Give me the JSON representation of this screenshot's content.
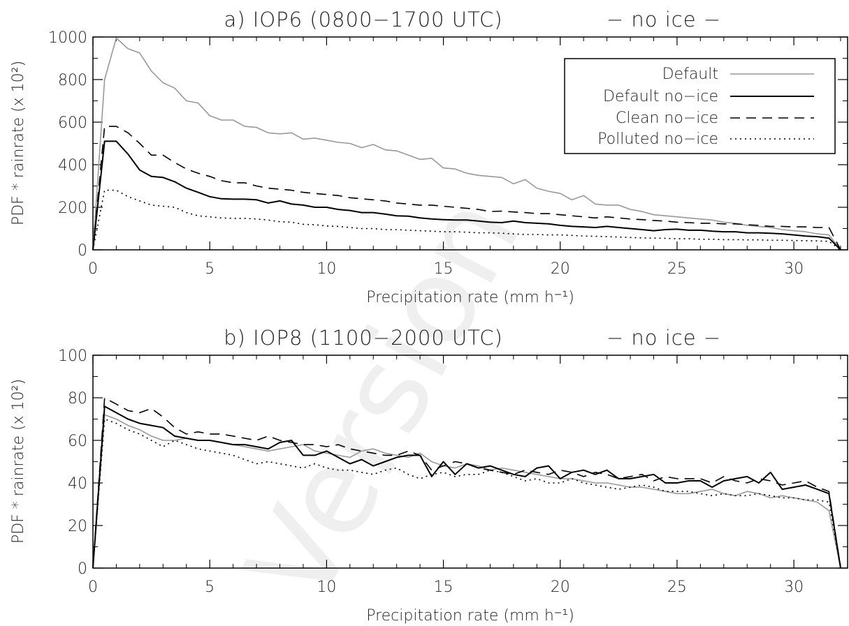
{
  "watermark": "Version",
  "legend": {
    "entries": [
      {
        "label": "Default",
        "color": "#999999",
        "dash": "solid",
        "width": 1.6
      },
      {
        "label": "Default no−ice",
        "color": "#000000",
        "dash": "solid",
        "width": 2
      },
      {
        "label": "Clean no−ice",
        "color": "#000000",
        "dash": "dashed",
        "width": 1.6
      },
      {
        "label": "Polluted no−ice",
        "color": "#000000",
        "dash": "dotted",
        "width": 1.6
      }
    ]
  },
  "chart_data": [
    {
      "type": "line",
      "title": "a) IOP6 (0800−1700 UTC)",
      "title_tag": "− no ice −",
      "xlabel": "Precipitation rate (mm h⁻¹)",
      "ylabel": "PDF * rainrate (x 10²)",
      "xlim": [
        0,
        32.3
      ],
      "ylim": [
        0,
        1000
      ],
      "xticks": [
        0,
        5,
        10,
        15,
        20,
        25,
        30
      ],
      "yticks": [
        0,
        200,
        400,
        600,
        800,
        1000
      ],
      "grid": false,
      "legend_position": "top-right",
      "x_step": 0.5,
      "series": [
        {
          "name": "Default",
          "values": [
            0,
            800,
            995,
            945,
            925,
            840,
            785,
            760,
            700,
            690,
            630,
            610,
            610,
            580,
            575,
            550,
            545,
            550,
            520,
            525,
            515,
            505,
            500,
            480,
            495,
            470,
            465,
            445,
            425,
            430,
            385,
            380,
            360,
            350,
            345,
            340,
            310,
            330,
            290,
            275,
            265,
            235,
            255,
            215,
            210,
            210,
            190,
            180,
            165,
            160,
            155,
            150,
            145,
            140,
            130,
            125,
            115,
            110,
            105,
            95,
            90,
            85,
            75,
            70,
            0
          ]
        },
        {
          "name": "Default no−ice",
          "values": [
            0,
            510,
            510,
            450,
            375,
            345,
            340,
            320,
            290,
            270,
            250,
            240,
            238,
            238,
            235,
            220,
            230,
            215,
            210,
            200,
            200,
            190,
            185,
            175,
            175,
            168,
            160,
            158,
            150,
            145,
            142,
            140,
            140,
            135,
            130,
            128,
            135,
            128,
            125,
            122,
            115,
            110,
            108,
            105,
            110,
            105,
            100,
            95,
            90,
            95,
            97,
            92,
            92,
            88,
            85,
            85,
            80,
            80,
            78,
            75,
            70,
            65,
            62,
            55,
            0
          ]
        },
        {
          "name": "Clean no−ice",
          "values": [
            0,
            580,
            580,
            550,
            500,
            445,
            445,
            410,
            380,
            360,
            345,
            325,
            315,
            315,
            300,
            290,
            285,
            280,
            270,
            265,
            260,
            255,
            245,
            240,
            235,
            230,
            220,
            215,
            210,
            210,
            205,
            200,
            195,
            190,
            180,
            182,
            178,
            175,
            170,
            170,
            165,
            160,
            155,
            150,
            155,
            150,
            145,
            142,
            138,
            135,
            130,
            128,
            125,
            125,
            122,
            122,
            118,
            115,
            110,
            110,
            108,
            108,
            105,
            105,
            0
          ]
        },
        {
          "name": "Polluted no−ice",
          "values": [
            0,
            280,
            280,
            250,
            230,
            210,
            205,
            200,
            175,
            160,
            155,
            150,
            148,
            148,
            145,
            140,
            132,
            130,
            120,
            118,
            112,
            110,
            105,
            100,
            100,
            95,
            95,
            92,
            90,
            88,
            85,
            85,
            83,
            80,
            80,
            78,
            75,
            72,
            72,
            70,
            70,
            68,
            65,
            64,
            62,
            60,
            58,
            56,
            55,
            54,
            52,
            52,
            50,
            50,
            48,
            48,
            47,
            47,
            45,
            45,
            44,
            43,
            42,
            40,
            0
          ]
        }
      ]
    },
    {
      "type": "line",
      "title": "b) IOP8 (1100−2000 UTC)",
      "title_tag": "− no ice −",
      "xlabel": "Precipitation rate (mm h⁻¹)",
      "ylabel": "PDF * rainrate (x 10²)",
      "xlim": [
        0,
        32.3
      ],
      "ylim": [
        0,
        100
      ],
      "xticks": [
        0,
        5,
        10,
        15,
        20,
        25,
        30
      ],
      "yticks": [
        0,
        20,
        40,
        60,
        80,
        100
      ],
      "grid": false,
      "x_step": 0.5,
      "series": [
        {
          "name": "Default",
          "values": [
            0,
            72,
            70,
            67,
            65,
            62,
            60,
            60,
            61,
            60,
            60,
            59,
            58,
            57,
            56,
            55,
            56,
            57,
            58,
            55,
            54,
            53,
            52,
            55,
            56,
            54,
            53,
            52,
            54,
            50,
            48,
            47,
            49,
            48,
            46,
            47,
            46,
            45,
            44,
            43,
            42,
            42,
            41,
            40,
            40,
            39,
            38,
            38,
            37,
            36,
            35,
            35,
            36,
            37,
            35,
            34,
            36,
            35,
            33,
            34,
            33,
            32,
            31,
            27,
            0
          ]
        },
        {
          "name": "Default no−ice",
          "values": [
            0,
            76,
            73,
            70,
            68,
            67,
            66,
            62,
            61,
            60,
            60,
            59,
            58,
            58,
            57,
            56,
            59,
            60,
            53,
            53,
            55,
            52,
            49,
            51,
            48,
            50,
            52,
            53,
            53,
            43,
            50,
            44,
            49,
            47,
            48,
            46,
            44,
            43,
            47,
            48,
            42,
            45,
            46,
            44,
            46,
            42,
            42,
            43,
            44,
            40,
            40,
            41,
            41,
            38,
            41,
            42,
            43,
            40,
            45,
            37,
            38,
            39,
            37,
            35,
            0
          ]
        },
        {
          "name": "Clean no−ice",
          "values": [
            0,
            80,
            77,
            74,
            73,
            75,
            71,
            66,
            63,
            64,
            63,
            63,
            62,
            61,
            60,
            62,
            60,
            59,
            58,
            58,
            57,
            58,
            56,
            55,
            54,
            53,
            53,
            55,
            53,
            46,
            48,
            50,
            49,
            47,
            46,
            45,
            44,
            46,
            45,
            44,
            46,
            45,
            43,
            45,
            44,
            42,
            43,
            44,
            41,
            43,
            42,
            42,
            42,
            40,
            43,
            41,
            40,
            42,
            41,
            39,
            40,
            41,
            38,
            36,
            0
          ]
        },
        {
          "name": "Polluted no−ice",
          "values": [
            0,
            70,
            68,
            65,
            63,
            60,
            57,
            60,
            58,
            56,
            55,
            54,
            53,
            51,
            49,
            50,
            49,
            48,
            47,
            49,
            47,
            46,
            46,
            45,
            44,
            46,
            47,
            44,
            42,
            44,
            45,
            43,
            44,
            44,
            46,
            45,
            43,
            41,
            42,
            40,
            40,
            42,
            40,
            39,
            38,
            37,
            38,
            39,
            38,
            36,
            36,
            36,
            35,
            34,
            35,
            34,
            34,
            35,
            34,
            33,
            33,
            32,
            32,
            31,
            0
          ]
        }
      ]
    }
  ]
}
